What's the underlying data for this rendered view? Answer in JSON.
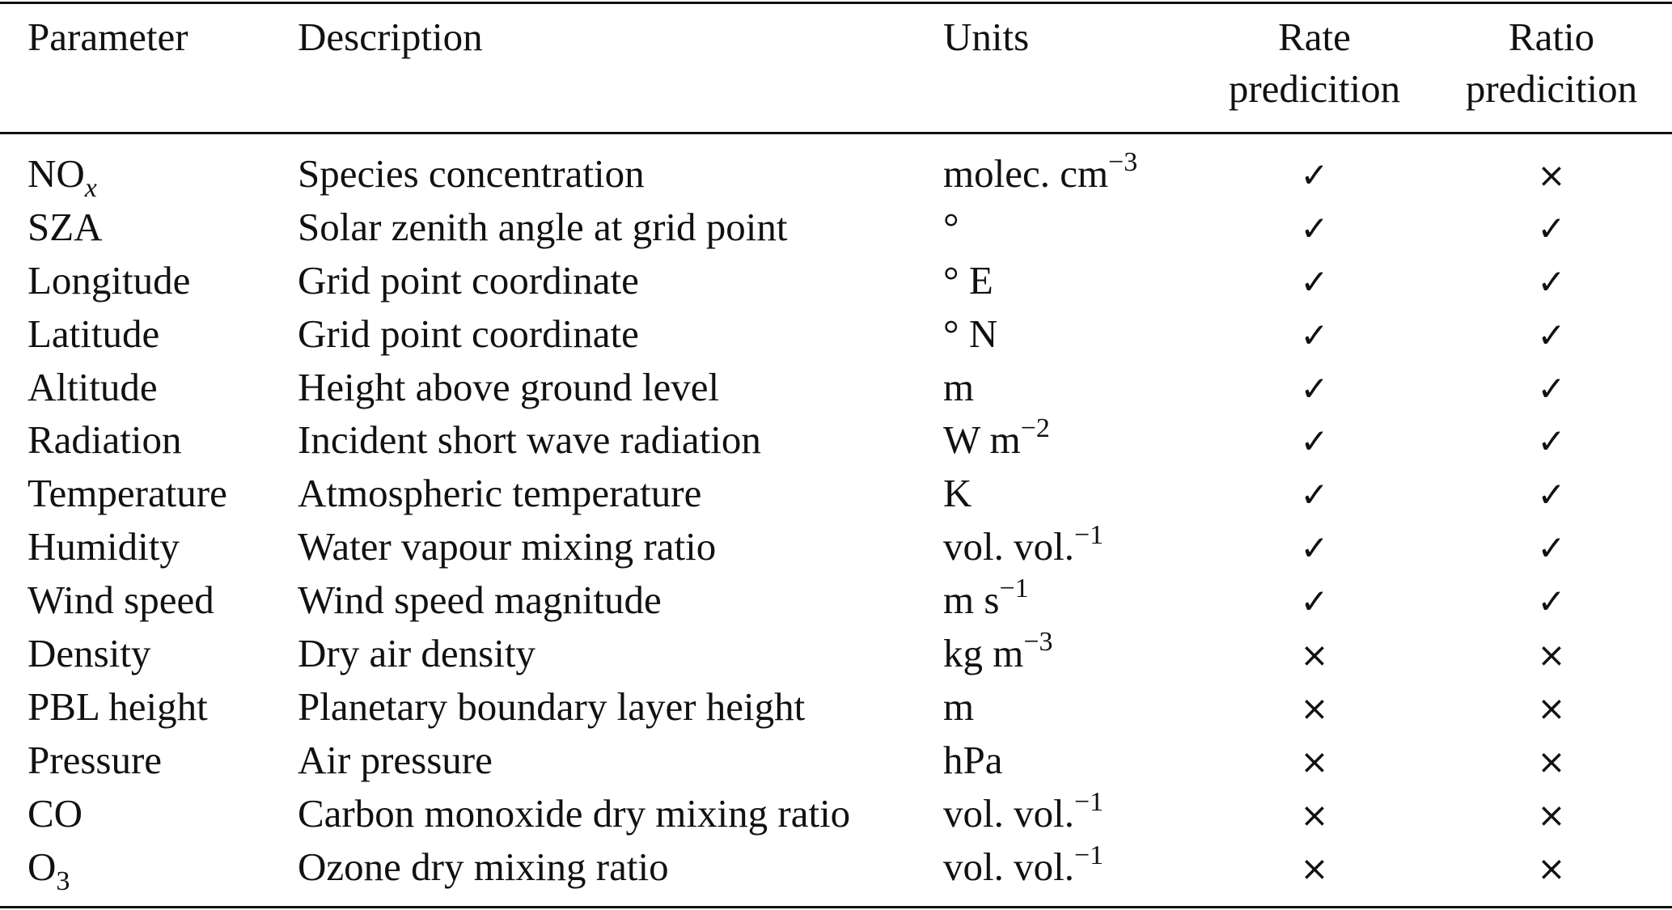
{
  "table": {
    "headers": {
      "parameter": "Parameter",
      "description": "Description",
      "units": "Units",
      "rate_line1": "Rate",
      "rate_line2": "predicition",
      "ratio_line1": "Ratio",
      "ratio_line2": "predicition"
    },
    "marks": {
      "yes": "✓",
      "no": "×"
    },
    "rows": [
      {
        "param": "NO",
        "param_sub": "x",
        "description": "Species concentration",
        "units": "molec. cm",
        "units_sup": "−3",
        "rate": "✓",
        "ratio": "×"
      },
      {
        "param": "SZA",
        "description": "Solar zenith angle at grid point",
        "units": "°",
        "rate": "✓",
        "ratio": "✓"
      },
      {
        "param": "Longitude",
        "description": "Grid point coordinate",
        "units": "° E",
        "rate": "✓",
        "ratio": "✓"
      },
      {
        "param": "Latitude",
        "description": "Grid point coordinate",
        "units": "° N",
        "rate": "✓",
        "ratio": "✓"
      },
      {
        "param": "Altitude",
        "description": "Height above ground level",
        "units": "m",
        "rate": "✓",
        "ratio": "✓"
      },
      {
        "param": "Radiation",
        "description": "Incident short wave radiation",
        "units": "W m",
        "units_sup": "−2",
        "rate": "✓",
        "ratio": "✓"
      },
      {
        "param": "Temperature",
        "description": "Atmospheric temperature",
        "units": "K",
        "rate": "✓",
        "ratio": "✓"
      },
      {
        "param": "Humidity",
        "description": "Water vapour mixing ratio",
        "units": "vol. vol.",
        "units_sup": "−1",
        "rate": "✓",
        "ratio": "✓"
      },
      {
        "param": "Wind speed",
        "description": "Wind speed magnitude",
        "units": "m s",
        "units_sup": "−1",
        "rate": "✓",
        "ratio": "✓"
      },
      {
        "param": "Density",
        "description": "Dry air density",
        "units": "kg m",
        "units_sup": "−3",
        "rate": "×",
        "ratio": "×"
      },
      {
        "param": "PBL height",
        "description": "Planetary boundary layer height",
        "units": "m",
        "rate": "×",
        "ratio": "×"
      },
      {
        "param": "Pressure",
        "description": "Air pressure",
        "units": "hPa",
        "rate": "×",
        "ratio": "×"
      },
      {
        "param": "CO",
        "description": "Carbon monoxide dry mixing ratio",
        "units": "vol. vol.",
        "units_sup": "−1",
        "rate": "×",
        "ratio": "×"
      },
      {
        "param": "O",
        "param_sub": "3",
        "description": "Ozone dry mixing ratio",
        "units": "vol. vol.",
        "units_sup": "−1",
        "rate": "×",
        "ratio": "×"
      }
    ]
  }
}
